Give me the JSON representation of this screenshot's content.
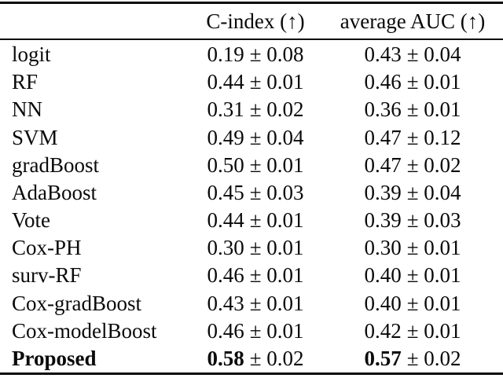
{
  "page": {
    "background": "#ffffff",
    "text_color": "#0a0a0a",
    "rule_color": "#0a0a0a"
  },
  "table": {
    "header": {
      "method_col": "",
      "c_index": "C-index (↑)",
      "auc": "average AUC (↑)"
    },
    "rows": [
      {
        "label": "logit",
        "c_val": "0.19",
        "c_err": "± 0.08",
        "a_val": "0.43",
        "a_err": "± 0.04",
        "bold": false
      },
      {
        "label": "RF",
        "c_val": "0.44",
        "c_err": "± 0.01",
        "a_val": "0.46",
        "a_err": "± 0.01",
        "bold": false
      },
      {
        "label": "NN",
        "c_val": "0.31",
        "c_err": "± 0.02",
        "a_val": "0.36",
        "a_err": "± 0.01",
        "bold": false
      },
      {
        "label": "SVM",
        "c_val": "0.49",
        "c_err": "± 0.04",
        "a_val": "0.47",
        "a_err": "± 0.12",
        "bold": false
      },
      {
        "label": "gradBoost",
        "c_val": "0.50",
        "c_err": "± 0.01",
        "a_val": "0.47",
        "a_err": "± 0.02",
        "bold": false
      },
      {
        "label": "AdaBoost",
        "c_val": "0.45",
        "c_err": "± 0.03",
        "a_val": "0.39",
        "a_err": "± 0.04",
        "bold": false
      },
      {
        "label": "Vote",
        "c_val": "0.44",
        "c_err": "± 0.01",
        "a_val": "0.39",
        "a_err": "± 0.03",
        "bold": false
      },
      {
        "label": "Cox-PH",
        "c_val": "0.30",
        "c_err": "± 0.01",
        "a_val": "0.30",
        "a_err": "± 0.01",
        "bold": false
      },
      {
        "label": "surv-RF",
        "c_val": "0.46",
        "c_err": "± 0.01",
        "a_val": "0.40",
        "a_err": "± 0.01",
        "bold": false
      },
      {
        "label": "Cox-gradBoost",
        "c_val": "0.43",
        "c_err": "± 0.01",
        "a_val": "0.40",
        "a_err": "± 0.01",
        "bold": false
      },
      {
        "label": "Cox-modelBoost",
        "c_val": "0.46",
        "c_err": "± 0.01",
        "a_val": "0.42",
        "a_err": "± 0.01",
        "bold": false
      },
      {
        "label": "Proposed",
        "c_val": "0.58",
        "c_err": "± 0.02",
        "a_val": "0.57",
        "a_err": "± 0.02",
        "bold": true
      }
    ]
  }
}
